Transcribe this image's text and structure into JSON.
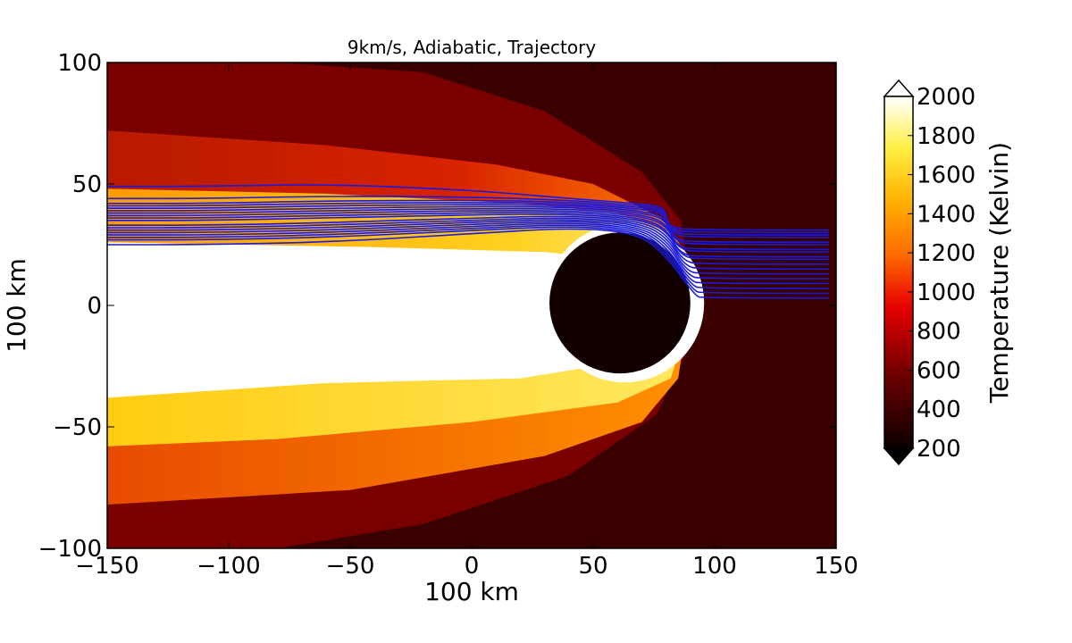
{
  "chart_data": {
    "type": "heatmap",
    "title": "9km/s, Adiabatic, Trajectory",
    "xlabel": "100 km",
    "ylabel": "100 km",
    "xlim": [
      -150,
      150
    ],
    "ylim": [
      -100,
      100
    ],
    "x_ticks": [
      -150,
      -100,
      -50,
      0,
      50,
      100,
      150
    ],
    "y_ticks": [
      -100,
      -50,
      0,
      50,
      100
    ],
    "x_tick_labels": [
      "−150",
      "−100",
      "−50",
      "0",
      "50",
      "100",
      "150"
    ],
    "y_tick_labels": [
      "−100",
      "−50",
      "0",
      "50",
      "100"
    ],
    "colorbar": {
      "label": "Temperature (Kelvin)",
      "range": [
        200,
        2000
      ],
      "ticks": [
        200,
        400,
        600,
        800,
        1000,
        1200,
        1400,
        1600,
        1800,
        2000
      ],
      "colormap": "hot",
      "extend": "both"
    },
    "obstacle": {
      "center": [
        61,
        1
      ],
      "radius": 29,
      "color": "#120000"
    },
    "colors": {
      "trajectory": "#1a1adc",
      "background": "#3a0000",
      "hot_core": "#ffffff"
    },
    "trajectories": {
      "count": 18,
      "start_x": 147,
      "start_y": [
        3,
        5,
        7,
        9,
        11,
        13,
        15,
        17,
        19,
        20,
        22,
        23,
        25,
        26,
        28,
        29,
        30,
        31
      ],
      "end_x": -150,
      "end_y": [
        25,
        27,
        28,
        29,
        30,
        31,
        32,
        33,
        35,
        36,
        37,
        38,
        39,
        40,
        41,
        42,
        44,
        49
      ]
    }
  }
}
